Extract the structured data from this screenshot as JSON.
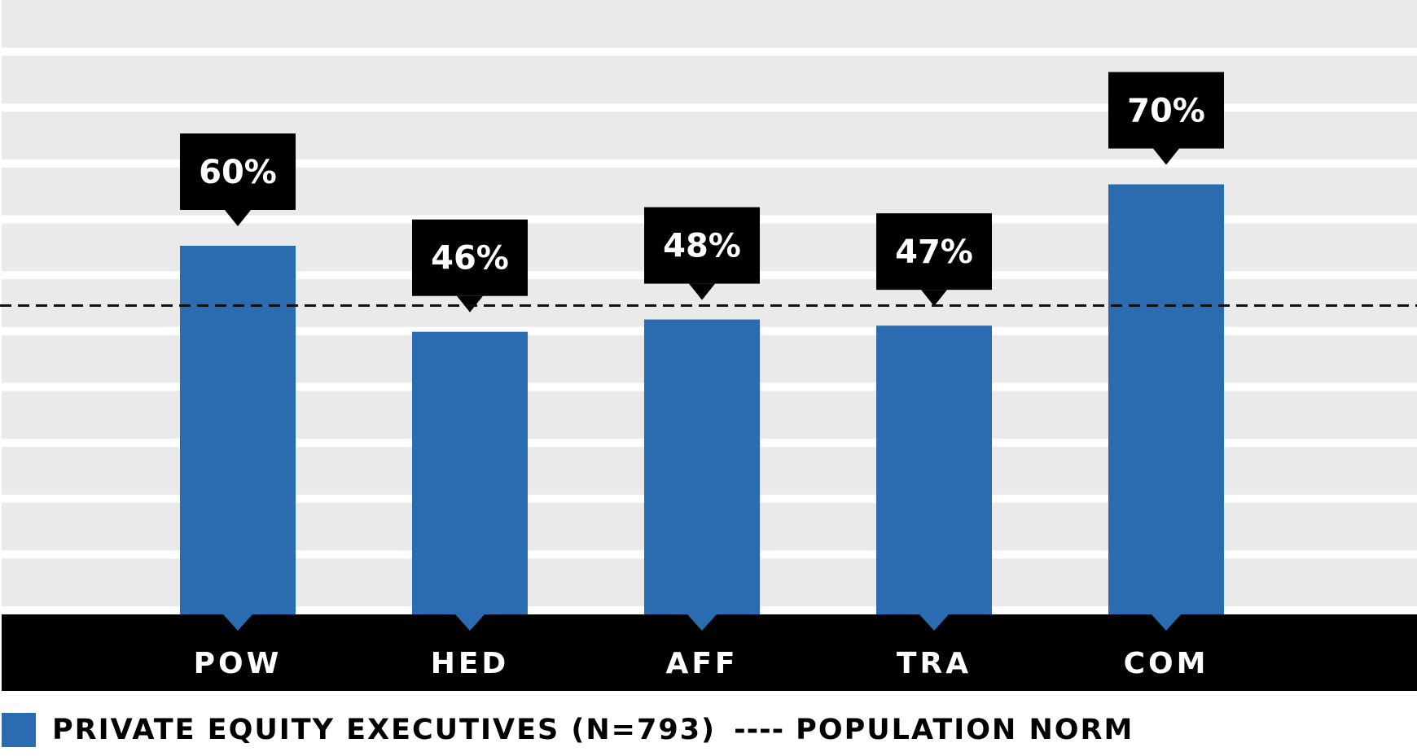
{
  "chart_data": {
    "type": "bar",
    "categories": [
      "POW",
      "HED",
      "AFF",
      "TRA",
      "COM"
    ],
    "series": [
      {
        "name": "PRIVATE EQUITY EXECUTIVES (N=793)",
        "values": [
          60,
          46,
          48,
          47,
          70
        ],
        "value_labels": [
          "60%",
          "46%",
          "48%",
          "47%",
          "70%"
        ]
      }
    ],
    "reference_line": {
      "name": "POPULATION NORM",
      "value": 50,
      "style": "dashed"
    },
    "ylim": [
      0,
      100
    ],
    "grid": true,
    "legend_position": "bottom-left",
    "title": "",
    "xlabel": "",
    "ylabel": ""
  },
  "legend": {
    "series_label": "PRIVATE EQUITY EXECUTIVES (N=793)",
    "dash_glyph": "----",
    "norm_label": "POPULATION NORM"
  },
  "colors": {
    "bar": "#2b6cb0",
    "band": "#e9eae9",
    "axis_band": "#000000",
    "callout": "#000000",
    "text_light": "#ffffff"
  }
}
